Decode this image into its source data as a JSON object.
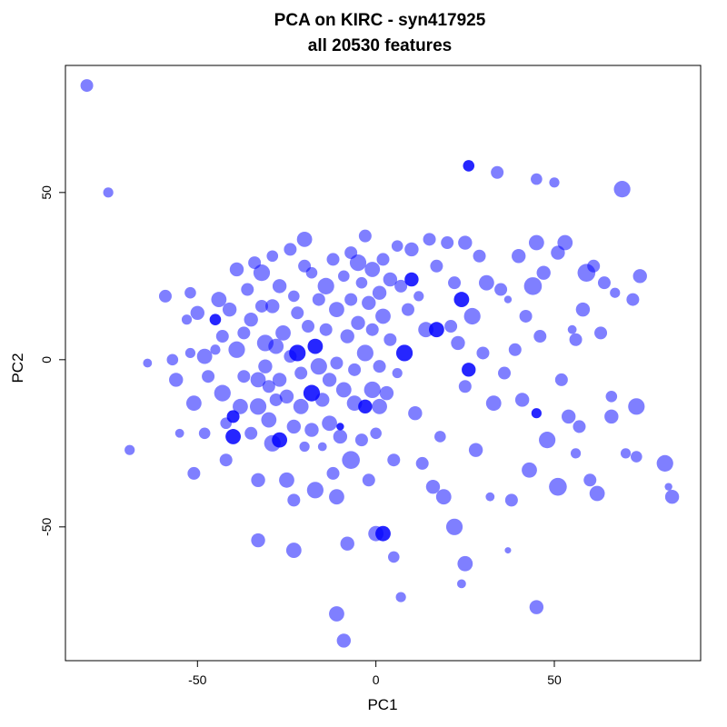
{
  "chart_data": {
    "type": "scatter",
    "title": "PCA on KIRC - syn417925",
    "subtitle": "all 20530 features",
    "xlabel": "PC1",
    "ylabel": "PC2",
    "xlim": [
      -87,
      91
    ],
    "ylim": [
      -90,
      88
    ],
    "xticks": [
      -50,
      0,
      50
    ],
    "yticks": [
      -50,
      0,
      50
    ],
    "grid": false,
    "marker_color": "#0000ff",
    "marker_opacity": 0.5,
    "points": [
      {
        "x": -81,
        "y": 82,
        "s": 1.0
      },
      {
        "x": -75,
        "y": 50,
        "s": 0.8
      },
      {
        "x": -69,
        "y": -27,
        "s": 0.8
      },
      {
        "x": -64,
        "y": -1,
        "s": 0.7
      },
      {
        "x": -59,
        "y": 19,
        "s": 1.0
      },
      {
        "x": -57,
        "y": 0,
        "s": 0.9
      },
      {
        "x": -56,
        "y": -6,
        "s": 1.1
      },
      {
        "x": -55,
        "y": -22,
        "s": 0.7
      },
      {
        "x": -53,
        "y": 12,
        "s": 0.8
      },
      {
        "x": -52,
        "y": 20,
        "s": 0.9
      },
      {
        "x": -52,
        "y": 2,
        "s": 0.8
      },
      {
        "x": -51,
        "y": -13,
        "s": 1.2
      },
      {
        "x": -51,
        "y": -34,
        "s": 1.0
      },
      {
        "x": -50,
        "y": 14,
        "s": 1.1
      },
      {
        "x": -48,
        "y": 1,
        "s": 1.2
      },
      {
        "x": -48,
        "y": -22,
        "s": 0.9
      },
      {
        "x": -47,
        "y": -5,
        "s": 1.0
      },
      {
        "x": -45,
        "y": 12,
        "s": 0.9,
        "d": true
      },
      {
        "x": -45,
        "y": 3,
        "s": 0.8
      },
      {
        "x": -44,
        "y": 18,
        "s": 1.2
      },
      {
        "x": -43,
        "y": 7,
        "s": 1.0
      },
      {
        "x": -43,
        "y": -10,
        "s": 1.3
      },
      {
        "x": -42,
        "y": -19,
        "s": 0.9
      },
      {
        "x": -42,
        "y": -30,
        "s": 1.0
      },
      {
        "x": -41,
        "y": 15,
        "s": 1.1
      },
      {
        "x": -40,
        "y": -17,
        "s": 1.0,
        "d": true
      },
      {
        "x": -40,
        "y": -23,
        "s": 1.2,
        "d": true
      },
      {
        "x": -39,
        "y": 27,
        "s": 1.1
      },
      {
        "x": -39,
        "y": 3,
        "s": 1.3
      },
      {
        "x": -38,
        "y": -14,
        "s": 1.2
      },
      {
        "x": -37,
        "y": 8,
        "s": 1.0
      },
      {
        "x": -37,
        "y": -5,
        "s": 1.0
      },
      {
        "x": -36,
        "y": 21,
        "s": 1.0
      },
      {
        "x": -35,
        "y": 12,
        "s": 1.1
      },
      {
        "x": -35,
        "y": -22,
        "s": 1.0
      },
      {
        "x": -34,
        "y": 29,
        "s": 1.0
      },
      {
        "x": -33,
        "y": -6,
        "s": 1.2
      },
      {
        "x": -33,
        "y": -14,
        "s": 1.3
      },
      {
        "x": -33,
        "y": -36,
        "s": 1.1
      },
      {
        "x": -33,
        "y": -54,
        "s": 1.1
      },
      {
        "x": -32,
        "y": 26,
        "s": 1.3
      },
      {
        "x": -32,
        "y": 16,
        "s": 1.0
      },
      {
        "x": -31,
        "y": 5,
        "s": 1.3
      },
      {
        "x": -31,
        "y": -2,
        "s": 1.1
      },
      {
        "x": -30,
        "y": -8,
        "s": 1.0
      },
      {
        "x": -30,
        "y": -18,
        "s": 1.2
      },
      {
        "x": -29,
        "y": 31,
        "s": 0.9
      },
      {
        "x": -29,
        "y": 16,
        "s": 1.1
      },
      {
        "x": -29,
        "y": -25,
        "s": 1.3
      },
      {
        "x": -28,
        "y": 4,
        "s": 1.2
      },
      {
        "x": -28,
        "y": -12,
        "s": 1.0
      },
      {
        "x": -27,
        "y": 22,
        "s": 1.1
      },
      {
        "x": -27,
        "y": -24,
        "s": 1.2,
        "d": true
      },
      {
        "x": -27,
        "y": -6,
        "s": 1.1
      },
      {
        "x": -26,
        "y": 8,
        "s": 1.2
      },
      {
        "x": -25,
        "y": -11,
        "s": 1.1
      },
      {
        "x": -25,
        "y": -36,
        "s": 1.2
      },
      {
        "x": -24,
        "y": 33,
        "s": 1.0
      },
      {
        "x": -24,
        "y": 1,
        "s": 1.0
      },
      {
        "x": -23,
        "y": 19,
        "s": 0.9
      },
      {
        "x": -23,
        "y": -20,
        "s": 1.1
      },
      {
        "x": -23,
        "y": -42,
        "s": 1.0
      },
      {
        "x": -23,
        "y": -57,
        "s": 1.2
      },
      {
        "x": -22,
        "y": 14,
        "s": 1.0
      },
      {
        "x": -22,
        "y": 2,
        "s": 1.3,
        "d": true
      },
      {
        "x": -21,
        "y": -4,
        "s": 1.0
      },
      {
        "x": -21,
        "y": -14,
        "s": 1.2
      },
      {
        "x": -20,
        "y": 36,
        "s": 1.2
      },
      {
        "x": -20,
        "y": 28,
        "s": 1.0
      },
      {
        "x": -20,
        "y": -26,
        "s": 0.8
      },
      {
        "x": -19,
        "y": 10,
        "s": 1.0
      },
      {
        "x": -18,
        "y": 26,
        "s": 0.9
      },
      {
        "x": -18,
        "y": -10,
        "s": 1.3,
        "d": true
      },
      {
        "x": -18,
        "y": -21,
        "s": 1.1
      },
      {
        "x": -17,
        "y": 4,
        "s": 1.2,
        "d": true
      },
      {
        "x": -17,
        "y": -39,
        "s": 1.3
      },
      {
        "x": -16,
        "y": 18,
        "s": 1.0
      },
      {
        "x": -16,
        "y": -2,
        "s": 1.3
      },
      {
        "x": -15,
        "y": -12,
        "s": 1.1
      },
      {
        "x": -15,
        "y": -26,
        "s": 0.7
      },
      {
        "x": -14,
        "y": 22,
        "s": 1.3
      },
      {
        "x": -14,
        "y": 9,
        "s": 1.0
      },
      {
        "x": -13,
        "y": -6,
        "s": 1.1
      },
      {
        "x": -13,
        "y": -19,
        "s": 1.2
      },
      {
        "x": -12,
        "y": 30,
        "s": 1.0
      },
      {
        "x": -12,
        "y": -34,
        "s": 1.0
      },
      {
        "x": -11,
        "y": 15,
        "s": 1.2
      },
      {
        "x": -11,
        "y": -1,
        "s": 1.0
      },
      {
        "x": -11,
        "y": -41,
        "s": 1.2
      },
      {
        "x": -11,
        "y": -76,
        "s": 1.2
      },
      {
        "x": -10,
        "y": -20,
        "s": 0.6,
        "d": true
      },
      {
        "x": -10,
        "y": -23,
        "s": 1.1
      },
      {
        "x": -9,
        "y": 25,
        "s": 0.9
      },
      {
        "x": -9,
        "y": -9,
        "s": 1.2
      },
      {
        "x": -9,
        "y": -84,
        "s": 1.1
      },
      {
        "x": -8,
        "y": 7,
        "s": 1.1
      },
      {
        "x": -8,
        "y": -55,
        "s": 1.1
      },
      {
        "x": -7,
        "y": 32,
        "s": 1.0
      },
      {
        "x": -7,
        "y": 18,
        "s": 1.0
      },
      {
        "x": -7,
        "y": -30,
        "s": 1.4
      },
      {
        "x": -6,
        "y": -3,
        "s": 1.0
      },
      {
        "x": -6,
        "y": -13,
        "s": 1.2
      },
      {
        "x": -5,
        "y": 29,
        "s": 1.3
      },
      {
        "x": -5,
        "y": 11,
        "s": 1.1
      },
      {
        "x": -4,
        "y": 23,
        "s": 0.9
      },
      {
        "x": -4,
        "y": -24,
        "s": 1.0
      },
      {
        "x": -3,
        "y": 37,
        "s": 1.0
      },
      {
        "x": -3,
        "y": 2,
        "s": 1.3
      },
      {
        "x": -3,
        "y": -14,
        "s": 1.1,
        "d": true
      },
      {
        "x": -2,
        "y": 17,
        "s": 1.1
      },
      {
        "x": -2,
        "y": -36,
        "s": 1.0
      },
      {
        "x": -1,
        "y": 27,
        "s": 1.2
      },
      {
        "x": -1,
        "y": 9,
        "s": 1.0
      },
      {
        "x": -1,
        "y": -9,
        "s": 1.3
      },
      {
        "x": 0,
        "y": -22,
        "s": 0.9
      },
      {
        "x": 0,
        "y": -52,
        "s": 1.2
      },
      {
        "x": 1,
        "y": 20,
        "s": 1.1
      },
      {
        "x": 1,
        "y": -2,
        "s": 1.0
      },
      {
        "x": 1,
        "y": -14,
        "s": 1.2
      },
      {
        "x": 2,
        "y": 30,
        "s": 1.0
      },
      {
        "x": 2,
        "y": 13,
        "s": 1.2
      },
      {
        "x": 2,
        "y": -52,
        "s": 1.2,
        "d": true
      },
      {
        "x": 3,
        "y": -10,
        "s": 1.1
      },
      {
        "x": 4,
        "y": 24,
        "s": 1.1
      },
      {
        "x": 4,
        "y": 6,
        "s": 1.0
      },
      {
        "x": 5,
        "y": -30,
        "s": 1.0
      },
      {
        "x": 5,
        "y": -59,
        "s": 0.9
      },
      {
        "x": 6,
        "y": 34,
        "s": 0.9
      },
      {
        "x": 6,
        "y": -4,
        "s": 0.8
      },
      {
        "x": 7,
        "y": 22,
        "s": 1.0
      },
      {
        "x": 7,
        "y": -71,
        "s": 0.8
      },
      {
        "x": 8,
        "y": 2,
        "s": 1.3,
        "d": true
      },
      {
        "x": 9,
        "y": 15,
        "s": 1.0
      },
      {
        "x": 10,
        "y": 33,
        "s": 1.1
      },
      {
        "x": 10,
        "y": 24,
        "s": 1.1,
        "d": true
      },
      {
        "x": 11,
        "y": -16,
        "s": 1.1
      },
      {
        "x": 12,
        "y": 19,
        "s": 0.8
      },
      {
        "x": 13,
        "y": -31,
        "s": 1.0
      },
      {
        "x": 14,
        "y": 9,
        "s": 1.2
      },
      {
        "x": 15,
        "y": 36,
        "s": 1.0
      },
      {
        "x": 16,
        "y": -38,
        "s": 1.1
      },
      {
        "x": 17,
        "y": 28,
        "s": 1.0
      },
      {
        "x": 17,
        "y": 9,
        "s": 1.2,
        "d": true
      },
      {
        "x": 18,
        "y": -23,
        "s": 0.9
      },
      {
        "x": 19,
        "y": -41,
        "s": 1.2
      },
      {
        "x": 20,
        "y": 35,
        "s": 1.0
      },
      {
        "x": 21,
        "y": 10,
        "s": 1.0
      },
      {
        "x": 22,
        "y": 23,
        "s": 1.0
      },
      {
        "x": 22,
        "y": -50,
        "s": 1.3
      },
      {
        "x": 23,
        "y": 5,
        "s": 1.1
      },
      {
        "x": 24,
        "y": 18,
        "s": 1.2,
        "d": true
      },
      {
        "x": 24,
        "y": -67,
        "s": 0.7
      },
      {
        "x": 25,
        "y": 35,
        "s": 1.1
      },
      {
        "x": 25,
        "y": -8,
        "s": 1.0
      },
      {
        "x": 25,
        "y": -61,
        "s": 1.2
      },
      {
        "x": 26,
        "y": 58,
        "s": 0.9,
        "d": true
      },
      {
        "x": 26,
        "y": -3,
        "s": 1.1,
        "d": true
      },
      {
        "x": 27,
        "y": 13,
        "s": 1.3
      },
      {
        "x": 28,
        "y": -27,
        "s": 1.1
      },
      {
        "x": 29,
        "y": 31,
        "s": 1.0
      },
      {
        "x": 30,
        "y": 2,
        "s": 1.0
      },
      {
        "x": 31,
        "y": 23,
        "s": 1.2
      },
      {
        "x": 32,
        "y": -41,
        "s": 0.7
      },
      {
        "x": 33,
        "y": -13,
        "s": 1.2
      },
      {
        "x": 34,
        "y": 56,
        "s": 1.0
      },
      {
        "x": 35,
        "y": 21,
        "s": 1.0
      },
      {
        "x": 36,
        "y": -4,
        "s": 1.0
      },
      {
        "x": 37,
        "y": -57,
        "s": 0.5
      },
      {
        "x": 37,
        "y": 18,
        "s": 0.6
      },
      {
        "x": 38,
        "y": -42,
        "s": 1.0
      },
      {
        "x": 39,
        "y": 3,
        "s": 1.0
      },
      {
        "x": 40,
        "y": 31,
        "s": 1.1
      },
      {
        "x": 41,
        "y": -12,
        "s": 1.1
      },
      {
        "x": 42,
        "y": 13,
        "s": 1.0
      },
      {
        "x": 43,
        "y": -33,
        "s": 1.2
      },
      {
        "x": 44,
        "y": 22,
        "s": 1.4
      },
      {
        "x": 45,
        "y": 54,
        "s": 0.9
      },
      {
        "x": 45,
        "y": 35,
        "s": 1.2
      },
      {
        "x": 45,
        "y": -16,
        "s": 0.8,
        "d": true
      },
      {
        "x": 45,
        "y": -74,
        "s": 1.1
      },
      {
        "x": 46,
        "y": 7,
        "s": 1.0
      },
      {
        "x": 47,
        "y": 26,
        "s": 1.1
      },
      {
        "x": 48,
        "y": -24,
        "s": 1.3
      },
      {
        "x": 50,
        "y": 53,
        "s": 0.8
      },
      {
        "x": 51,
        "y": 32,
        "s": 1.1
      },
      {
        "x": 51,
        "y": -38,
        "s": 1.4
      },
      {
        "x": 52,
        "y": -6,
        "s": 1.0
      },
      {
        "x": 53,
        "y": 35,
        "s": 1.2
      },
      {
        "x": 54,
        "y": -17,
        "s": 1.1
      },
      {
        "x": 55,
        "y": 9,
        "s": 0.7
      },
      {
        "x": 56,
        "y": 6,
        "s": 1.0
      },
      {
        "x": 56,
        "y": -28,
        "s": 0.8
      },
      {
        "x": 57,
        "y": -20,
        "s": 1.0
      },
      {
        "x": 58,
        "y": 15,
        "s": 1.1
      },
      {
        "x": 59,
        "y": 26,
        "s": 1.4
      },
      {
        "x": 60,
        "y": -36,
        "s": 1.0
      },
      {
        "x": 61,
        "y": 28,
        "s": 1.0
      },
      {
        "x": 62,
        "y": -40,
        "s": 1.2
      },
      {
        "x": 63,
        "y": 8,
        "s": 1.0
      },
      {
        "x": 64,
        "y": 23,
        "s": 1.0
      },
      {
        "x": 66,
        "y": -11,
        "s": 0.9
      },
      {
        "x": 66,
        "y": -17,
        "s": 1.1
      },
      {
        "x": 67,
        "y": 20,
        "s": 0.8
      },
      {
        "x": 69,
        "y": 51,
        "s": 1.3
      },
      {
        "x": 70,
        "y": -28,
        "s": 0.8
      },
      {
        "x": 72,
        "y": 18,
        "s": 1.0
      },
      {
        "x": 73,
        "y": -14,
        "s": 1.3
      },
      {
        "x": 73,
        "y": -29,
        "s": 0.9
      },
      {
        "x": 74,
        "y": 25,
        "s": 1.1
      },
      {
        "x": 81,
        "y": -31,
        "s": 1.3
      },
      {
        "x": 82,
        "y": -38,
        "s": 0.6
      },
      {
        "x": 83,
        "y": -41,
        "s": 1.1
      }
    ]
  }
}
